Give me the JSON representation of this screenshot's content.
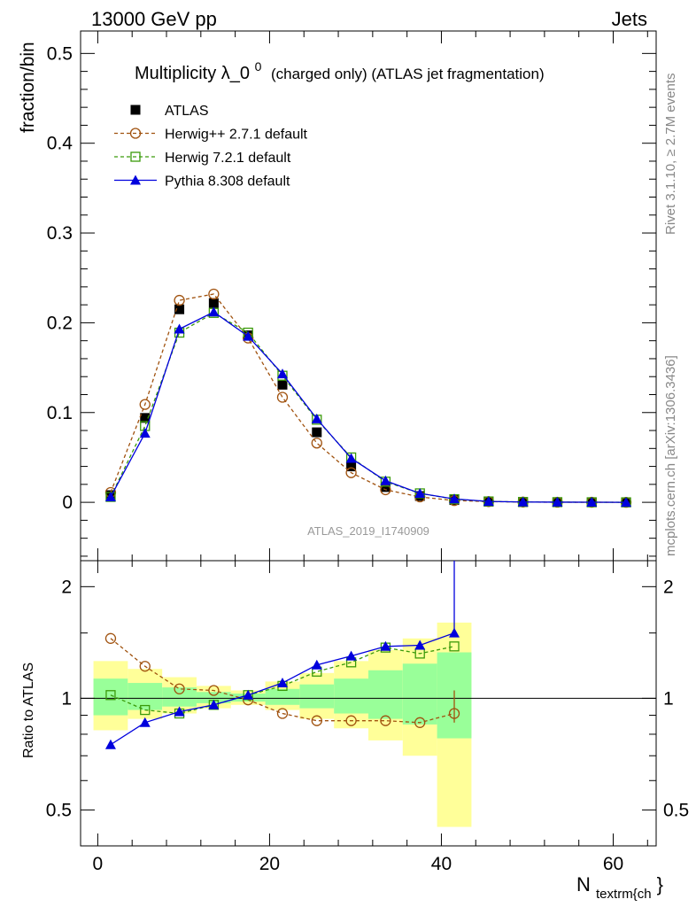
{
  "header": {
    "left": "13000 GeV pp",
    "right": "Jets"
  },
  "side_labels": {
    "rivet": "Rivet 3.1.10, ≥ 2.7M events",
    "mcplots": "mcplots.cern.ch [arXiv:1306.3436]"
  },
  "analysis_id": "ATLAS_2019_I1740909",
  "colors": {
    "atlas": "#000000",
    "herwigpp": "#a0520f",
    "herwig7": "#3a9a0a",
    "pythia": "#0000dd",
    "band_inner": "#99ff99",
    "band_outer": "#ffff99"
  },
  "chart_data": {
    "type": "line",
    "title_main": "Multiplicity λ_0",
    "title_sup": "0",
    "title_rest": "(charged only) (ATLAS jet fragmentation)",
    "ylabel": "fraction/bin",
    "xlabel_main": "N",
    "xlabel_sub": "textrm{ch",
    "xlabel_tail": "}",
    "ratio_ylabel": "Ratio to ATLAS",
    "xlim": [
      -2,
      65
    ],
    "ylim": [
      -0.065,
      0.525
    ],
    "ratio_ylim": [
      0.4,
      2.35
    ],
    "x_ticks": [
      0,
      20,
      40,
      60
    ],
    "y_ticks": [
      0,
      0.1,
      0.2,
      0.3,
      0.4,
      0.5
    ],
    "y_tick_labels": [
      "0",
      "0.1",
      "0.2",
      "0.3",
      "0.4",
      "0.5"
    ],
    "ratio_ticks": [
      0.5,
      1,
      2
    ],
    "ratio_tick_labels": [
      "0.5",
      "1",
      "2"
    ],
    "x": [
      1.5,
      5.5,
      9.5,
      13.5,
      17.5,
      21.5,
      25.5,
      29.5,
      33.5,
      37.5,
      41.5,
      45.5,
      49.5,
      53.5,
      57.5,
      61.5
    ],
    "series": [
      {
        "name": "ATLAS",
        "key": "atlas",
        "values": [
          0.008,
          0.094,
          0.215,
          0.222,
          0.186,
          0.131,
          0.078,
          0.04,
          0.017,
          0.007,
          0.0025,
          0.0008,
          0.0003,
          0.0001,
          5e-05,
          2e-05
        ]
      },
      {
        "name": "Herwig++ 2.7.1 default",
        "key": "herwigpp",
        "values": [
          0.011,
          0.109,
          0.225,
          0.232,
          0.183,
          0.117,
          0.066,
          0.033,
          0.014,
          0.006,
          0.002,
          0.0008,
          0.0003,
          0.0001,
          5e-05,
          2e-05
        ],
        "ratio": [
          1.45,
          1.22,
          1.06,
          1.05,
          0.99,
          0.91,
          0.87,
          0.87,
          0.87,
          0.86,
          0.91
        ]
      },
      {
        "name": "Herwig 7.2.1 default",
        "key": "herwig7",
        "values": [
          0.006,
          0.085,
          0.189,
          0.211,
          0.189,
          0.141,
          0.092,
          0.05,
          0.023,
          0.01,
          0.0035,
          0.001,
          0.0004,
          0.0002,
          0.0001,
          3e-05
        ],
        "ratio": [
          1.02,
          0.93,
          0.91,
          0.96,
          1.02,
          1.08,
          1.18,
          1.25,
          1.37,
          1.32,
          1.38
        ]
      },
      {
        "name": "Pythia 8.308 default",
        "key": "pythia",
        "values": [
          0.006,
          0.077,
          0.193,
          0.212,
          0.185,
          0.143,
          0.093,
          0.049,
          0.024,
          0.01,
          0.0038,
          0.001,
          0.0004,
          0.0002,
          0.0001,
          3e-05
        ],
        "ratio": [
          0.75,
          0.86,
          0.92,
          0.96,
          1.02,
          1.1,
          1.23,
          1.3,
          1.38,
          1.39,
          1.5
        ]
      }
    ],
    "ratio_bands": {
      "edges": [
        -0.5,
        3.5,
        7.5,
        11.5,
        15.5,
        19.5,
        23.5,
        27.5,
        31.5,
        35.5,
        39.5,
        43.5
      ],
      "inner": [
        [
          0.9,
          1.13
        ],
        [
          0.93,
          1.1
        ],
        [
          0.95,
          1.07
        ],
        [
          0.97,
          1.04
        ],
        [
          0.98,
          1.03
        ],
        [
          0.96,
          1.06
        ],
        [
          0.94,
          1.09
        ],
        [
          0.91,
          1.13
        ],
        [
          0.88,
          1.19
        ],
        [
          0.85,
          1.24
        ],
        [
          0.78,
          1.33
        ]
      ],
      "outer": [
        [
          0.82,
          1.26
        ],
        [
          0.88,
          1.2
        ],
        [
          0.91,
          1.14
        ],
        [
          0.94,
          1.08
        ],
        [
          0.96,
          1.05
        ],
        [
          0.93,
          1.11
        ],
        [
          0.88,
          1.17
        ],
        [
          0.83,
          1.26
        ],
        [
          0.77,
          1.35
        ],
        [
          0.7,
          1.45
        ],
        [
          0.45,
          1.6
        ]
      ]
    }
  }
}
